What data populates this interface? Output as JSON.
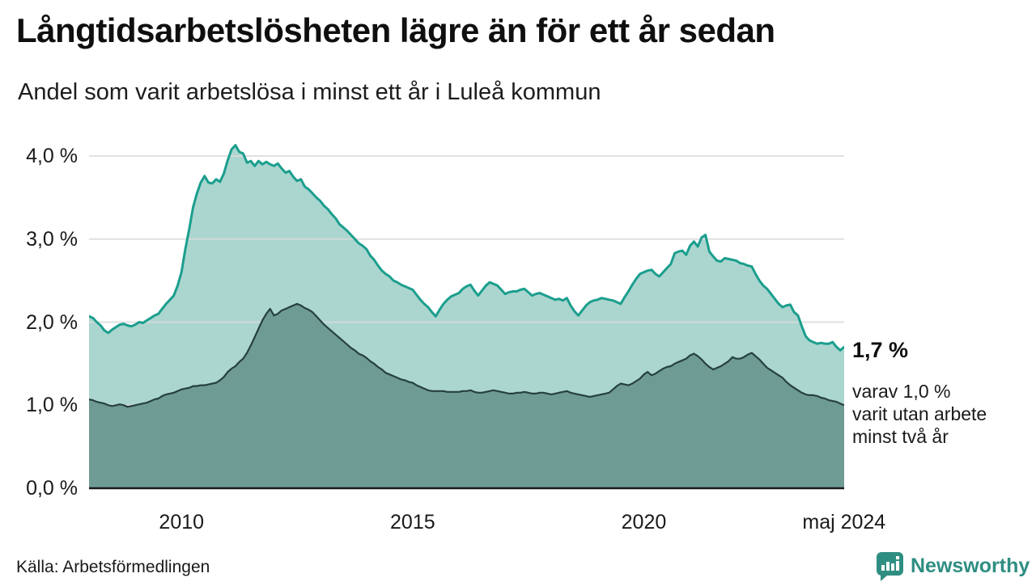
{
  "header": {
    "title": "Långtidsarbetslösheten lägre än för ett år sedan",
    "subtitle": "Andel som varit arbetslösa i minst ett år i Luleå kommun"
  },
  "chart_data": {
    "type": "area",
    "title": "Långtidsarbetslösheten lägre än för ett år sedan",
    "subtitle": "Andel som varit arbetslösa i minst ett år i Luleå kommun",
    "unit": "%",
    "grid": true,
    "ylim": [
      0,
      4.32
    ],
    "start_year": 2008,
    "months_per_step": 1,
    "x_axis_ticks": [
      {
        "label": "2010",
        "x": 2010
      },
      {
        "label": "2015",
        "x": 2015
      },
      {
        "label": "2020",
        "x": 2020
      },
      {
        "label": "maj 2024",
        "x": 2024.33
      }
    ],
    "y_axis_ticks": [
      {
        "label": "0,0 %",
        "value": 0
      },
      {
        "label": "1,0 %",
        "value": 1
      },
      {
        "label": "2,0 %",
        "value": 2
      },
      {
        "label": "3,0 %",
        "value": 3
      },
      {
        "label": "4,0 %",
        "value": 4
      }
    ],
    "series": [
      {
        "name": "Andel arbetslösa minst ett år",
        "line_color": "#1b9e8e",
        "fill_color": "#abd6cf",
        "line_width": 3,
        "end_value_label": "1,7 %",
        "values": [
          2.07,
          2.05,
          2.0,
          1.96,
          1.9,
          1.87,
          1.91,
          1.94,
          1.97,
          1.98,
          1.96,
          1.95,
          1.97,
          2.0,
          1.99,
          2.02,
          2.05,
          2.08,
          2.1,
          2.16,
          2.22,
          2.27,
          2.32,
          2.44,
          2.6,
          2.88,
          3.12,
          3.38,
          3.55,
          3.68,
          3.76,
          3.68,
          3.67,
          3.72,
          3.69,
          3.79,
          3.95,
          4.08,
          4.13,
          4.05,
          4.03,
          3.92,
          3.94,
          3.88,
          3.94,
          3.9,
          3.93,
          3.9,
          3.88,
          3.91,
          3.85,
          3.8,
          3.82,
          3.75,
          3.7,
          3.72,
          3.63,
          3.6,
          3.55,
          3.5,
          3.46,
          3.4,
          3.36,
          3.3,
          3.25,
          3.18,
          3.14,
          3.1,
          3.05,
          3.0,
          2.95,
          2.92,
          2.88,
          2.8,
          2.75,
          2.68,
          2.62,
          2.58,
          2.55,
          2.5,
          2.48,
          2.45,
          2.43,
          2.41,
          2.39,
          2.33,
          2.27,
          2.22,
          2.18,
          2.12,
          2.07,
          2.15,
          2.22,
          2.27,
          2.31,
          2.33,
          2.35,
          2.4,
          2.43,
          2.45,
          2.38,
          2.32,
          2.38,
          2.44,
          2.48,
          2.46,
          2.44,
          2.39,
          2.34,
          2.36,
          2.37,
          2.37,
          2.39,
          2.4,
          2.36,
          2.32,
          2.34,
          2.35,
          2.33,
          2.31,
          2.29,
          2.27,
          2.28,
          2.26,
          2.29,
          2.2,
          2.13,
          2.08,
          2.14,
          2.2,
          2.24,
          2.26,
          2.27,
          2.29,
          2.28,
          2.27,
          2.26,
          2.24,
          2.22,
          2.3,
          2.37,
          2.45,
          2.52,
          2.58,
          2.6,
          2.62,
          2.63,
          2.58,
          2.55,
          2.6,
          2.65,
          2.7,
          2.83,
          2.85,
          2.86,
          2.81,
          2.92,
          2.97,
          2.91,
          3.02,
          3.05,
          2.85,
          2.79,
          2.74,
          2.73,
          2.77,
          2.76,
          2.75,
          2.74,
          2.71,
          2.7,
          2.68,
          2.67,
          2.58,
          2.5,
          2.44,
          2.4,
          2.34,
          2.28,
          2.22,
          2.18,
          2.2,
          2.21,
          2.12,
          2.08,
          1.95,
          1.83,
          1.78,
          1.76,
          1.74,
          1.75,
          1.74,
          1.74,
          1.76,
          1.7,
          1.66,
          1.7
        ]
      },
      {
        "name": "Andel arbetslösa minst två år",
        "line_color": "#26413d",
        "fill_color": "#6f9b95",
        "line_width": 2.2,
        "end_value_label": "1,0 %",
        "values": [
          1.07,
          1.06,
          1.04,
          1.03,
          1.02,
          1.0,
          0.99,
          1.0,
          1.01,
          1.0,
          0.98,
          0.99,
          1.0,
          1.01,
          1.02,
          1.03,
          1.05,
          1.07,
          1.08,
          1.11,
          1.13,
          1.14,
          1.15,
          1.17,
          1.19,
          1.2,
          1.21,
          1.23,
          1.23,
          1.24,
          1.24,
          1.25,
          1.26,
          1.27,
          1.3,
          1.34,
          1.4,
          1.44,
          1.47,
          1.52,
          1.56,
          1.63,
          1.72,
          1.82,
          1.92,
          2.02,
          2.1,
          2.16,
          2.08,
          2.1,
          2.14,
          2.16,
          2.18,
          2.2,
          2.22,
          2.2,
          2.17,
          2.15,
          2.12,
          2.07,
          2.02,
          1.97,
          1.93,
          1.89,
          1.85,
          1.81,
          1.77,
          1.73,
          1.69,
          1.66,
          1.62,
          1.6,
          1.57,
          1.53,
          1.5,
          1.46,
          1.43,
          1.39,
          1.37,
          1.35,
          1.33,
          1.31,
          1.3,
          1.28,
          1.27,
          1.24,
          1.22,
          1.2,
          1.18,
          1.17,
          1.17,
          1.17,
          1.17,
          1.16,
          1.16,
          1.16,
          1.16,
          1.17,
          1.17,
          1.18,
          1.16,
          1.15,
          1.15,
          1.16,
          1.17,
          1.18,
          1.17,
          1.16,
          1.15,
          1.14,
          1.14,
          1.15,
          1.15,
          1.16,
          1.15,
          1.14,
          1.14,
          1.15,
          1.15,
          1.14,
          1.13,
          1.14,
          1.15,
          1.16,
          1.17,
          1.15,
          1.14,
          1.13,
          1.12,
          1.11,
          1.1,
          1.11,
          1.12,
          1.13,
          1.14,
          1.15,
          1.19,
          1.23,
          1.26,
          1.25,
          1.24,
          1.26,
          1.29,
          1.32,
          1.37,
          1.4,
          1.36,
          1.38,
          1.41,
          1.44,
          1.46,
          1.47,
          1.5,
          1.52,
          1.54,
          1.56,
          1.6,
          1.62,
          1.59,
          1.55,
          1.5,
          1.46,
          1.43,
          1.45,
          1.47,
          1.5,
          1.53,
          1.58,
          1.56,
          1.56,
          1.58,
          1.61,
          1.63,
          1.59,
          1.55,
          1.5,
          1.45,
          1.42,
          1.39,
          1.36,
          1.33,
          1.28,
          1.24,
          1.21,
          1.18,
          1.15,
          1.13,
          1.12,
          1.12,
          1.11,
          1.09,
          1.08,
          1.06,
          1.05,
          1.04,
          1.02,
          1.0
        ]
      }
    ],
    "annotations": {
      "primary": "1,7 %",
      "secondary_lines": [
        "varav 1,0 %",
        "varit utan arbete",
        "minst två år"
      ]
    }
  },
  "footer": {
    "source": "Källa: Arbetsförmedlingen",
    "brand": "Newsworthy"
  },
  "colors": {
    "accent_teal": "#1b9e8e",
    "light_fill": "#abd6cf",
    "dark_fill": "#6f9b95",
    "dark_line": "#26413d",
    "grid": "#d9d9d9",
    "axis": "#1a1a1a",
    "brand_teal": "#2f8e82"
  }
}
